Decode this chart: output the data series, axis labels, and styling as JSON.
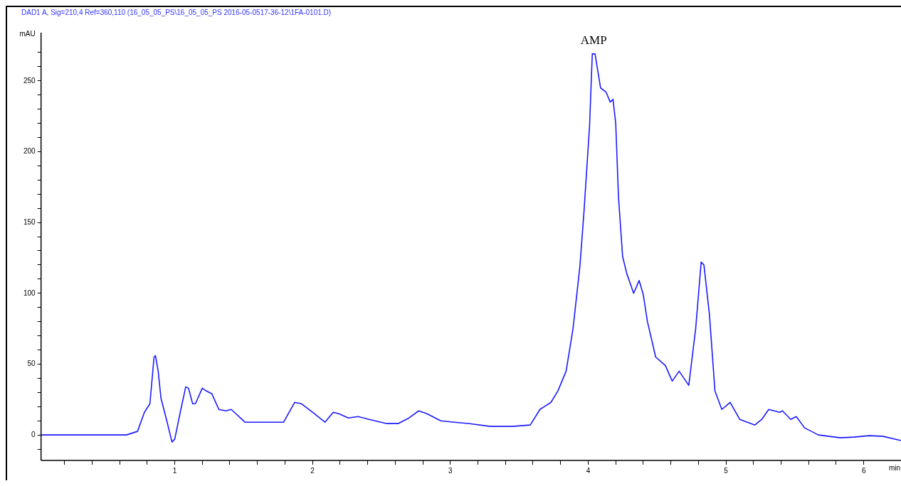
{
  "chart_data": {
    "type": "line",
    "title": "DAD1 A, Sig=210,4 Ref=360,110 (16_05_05_PS\\16_05_05_PS 2016-05-0517-36-12\\1FA-0101.D)",
    "xlabel": "min",
    "ylabel": "mAU",
    "annotations": [
      {
        "text": "AMP",
        "x": 4.04,
        "y": 270
      }
    ],
    "xlim": [
      0.03,
      6.27
    ],
    "xticks": [
      {
        "value": 0.2,
        "label": null
      },
      {
        "value": 0.4,
        "label": null
      },
      {
        "value": 0.6,
        "label": null
      },
      {
        "value": 0.8,
        "label": null
      },
      1,
      {
        "value": 1.2,
        "label": null
      },
      {
        "value": 1.4,
        "label": null
      },
      {
        "value": 1.6,
        "label": null
      },
      {
        "value": 1.8,
        "label": null
      },
      2,
      {
        "value": 2.2,
        "label": null
      },
      {
        "value": 2.4,
        "label": null
      },
      {
        "value": 2.6,
        "label": null
      },
      {
        "value": 2.8,
        "label": null
      },
      3,
      {
        "value": 3.2,
        "label": null
      },
      {
        "value": 3.4,
        "label": null
      },
      {
        "value": 3.6,
        "label": null
      },
      {
        "value": 3.8,
        "label": null
      },
      4,
      {
        "value": 4.2,
        "label": null
      },
      {
        "value": 4.4,
        "label": null
      },
      {
        "value": 4.6,
        "label": null
      },
      {
        "value": 4.8,
        "label": null
      },
      5,
      {
        "value": 5.2,
        "label": null
      },
      {
        "value": 5.4,
        "label": null
      },
      {
        "value": 5.6,
        "label": null
      },
      {
        "value": 5.8,
        "label": null
      },
      6
    ],
    "ylim": [
      -18,
      284
    ],
    "yticks": [
      {
        "value": -10,
        "label": null
      },
      0,
      {
        "value": 10,
        "label": null
      },
      {
        "value": 20,
        "label": null
      },
      {
        "value": 30,
        "label": null
      },
      {
        "value": 40,
        "label": null
      },
      50,
      {
        "value": 60,
        "label": null
      },
      {
        "value": 70,
        "label": null
      },
      {
        "value": 80,
        "label": null
      },
      {
        "value": 90,
        "label": null
      },
      100,
      {
        "value": 110,
        "label": null
      },
      {
        "value": 120,
        "label": null
      },
      {
        "value": 130,
        "label": null
      },
      {
        "value": 140,
        "label": null
      },
      150,
      {
        "value": 160,
        "label": null
      },
      {
        "value": 170,
        "label": null
      },
      {
        "value": 180,
        "label": null
      },
      {
        "value": 190,
        "label": null
      },
      200,
      {
        "value": 210,
        "label": null
      },
      {
        "value": 220,
        "label": null
      },
      {
        "value": 230,
        "label": null
      },
      {
        "value": 240,
        "label": null
      },
      250,
      {
        "value": 260,
        "label": null
      },
      {
        "value": 270,
        "label": null
      }
    ],
    "marker": "none",
    "line_style": "solid",
    "series": [
      {
        "color": "#1a1aff",
        "x": [
          0.03,
          0.65,
          0.73,
          0.78,
          0.82,
          0.85,
          0.86,
          0.88,
          0.9,
          0.94,
          0.98,
          1.0,
          1.04,
          1.08,
          1.1,
          1.13,
          1.15,
          1.2,
          1.23,
          1.27,
          1.32,
          1.37,
          1.41,
          1.51,
          1.79,
          1.87,
          1.92,
          2.0,
          2.09,
          2.15,
          2.19,
          2.26,
          2.33,
          2.41,
          2.54,
          2.62,
          2.7,
          2.77,
          2.83,
          2.93,
          3.03,
          3.14,
          3.29,
          3.45,
          3.58,
          3.65,
          3.73,
          3.78,
          3.84,
          3.89,
          3.94,
          3.97,
          4.01,
          4.03,
          4.05,
          4.07,
          4.09,
          4.13,
          4.16,
          4.18,
          4.2,
          4.22,
          4.25,
          4.28,
          4.33,
          4.37,
          4.4,
          4.43,
          4.49,
          4.56,
          4.61,
          4.66,
          4.73,
          4.78,
          4.82,
          4.84,
          4.88,
          4.92,
          4.97,
          5.03,
          5.1,
          5.21,
          5.26,
          5.31,
          5.39,
          5.41,
          5.47,
          5.51,
          5.57,
          5.67,
          5.83,
          5.93,
          6.04,
          6.14,
          6.27
        ],
        "values": [
          0,
          0,
          2.5,
          16,
          22,
          55,
          56,
          45,
          26,
          11,
          -5,
          -3,
          16,
          34,
          33,
          22,
          22,
          33,
          31,
          29,
          18,
          17,
          18,
          9,
          9,
          23,
          22,
          16,
          9,
          16,
          15,
          12,
          13,
          11,
          8,
          8,
          12,
          17,
          15,
          10,
          9,
          8,
          6,
          6,
          7,
          18,
          23,
          31,
          45,
          75,
          119,
          158,
          218,
          269,
          269,
          257,
          245,
          242,
          235,
          237,
          220,
          168,
          126,
          114,
          100,
          109,
          99,
          80,
          55,
          49,
          38,
          45,
          35,
          75,
          122,
          120,
          85,
          31,
          18,
          23,
          11,
          7,
          11,
          18,
          16,
          17,
          11,
          13,
          5,
          0,
          -2,
          -1.5,
          -0.5,
          -1,
          -4
        ]
      }
    ]
  }
}
